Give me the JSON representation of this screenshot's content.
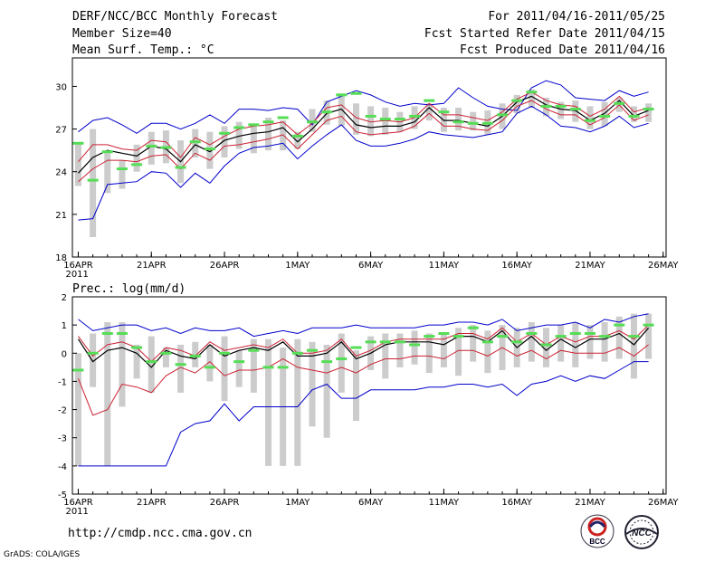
{
  "header": {
    "title": "DERF/NCC/BCC Monthly Forecast",
    "member_size": "Member Size=40",
    "variable": "Mean Surf. Temp.: °C",
    "period": "For 2011/04/16-2011/05/25",
    "start_ref": "Fcst Started Refer Date 2011/04/15",
    "produced": "Fcst Produced Date 2011/04/16"
  },
  "footer": {
    "url": "http://cmdp.ncc.cma.gov.cn",
    "grads": "GrADS: COLA/IGES",
    "logo_bcc": "BCC",
    "logo_ncc": "NCC"
  },
  "colors": {
    "max_min": "#0000cc",
    "spread": "#cc2233",
    "mean": "#000000",
    "obs": "#55dd55",
    "box": "#cccccc"
  },
  "chart_data": [
    {
      "type": "line",
      "name": "temperature",
      "ylabel": "Mean Surf. Temp.: °C",
      "ylim": [
        18,
        32
      ],
      "yticks": [
        18,
        21,
        24,
        27,
        30
      ],
      "xtick_labels": [
        "16APR\n2011",
        "21APR",
        "26APR",
        "1MAY",
        "6MAY",
        "11MAY",
        "16MAY",
        "21MAY",
        "26MAY"
      ],
      "xtick_days": [
        0,
        5,
        10,
        15,
        20,
        25,
        30,
        35,
        40
      ],
      "days": 40,
      "series": [
        {
          "name": "max",
          "values": [
            26.8,
            27.6,
            27.8,
            27.3,
            26.7,
            27.4,
            27.4,
            27.0,
            27.4,
            28.0,
            27.4,
            28.4,
            28.4,
            28.3,
            28.5,
            28.4,
            27.3,
            28.9,
            29.3,
            29.7,
            29.4,
            28.9,
            28.6,
            28.8,
            28.7,
            28.8,
            29.9,
            29.2,
            28.6,
            28.4,
            28.3,
            29.9,
            30.4,
            30.1,
            29.2,
            29.1,
            29.0,
            29.7,
            29.3,
            29.6
          ]
        },
        {
          "name": "upper",
          "values": [
            24.7,
            25.9,
            25.9,
            25.6,
            25.5,
            26.2,
            26.1,
            25.0,
            26.4,
            25.9,
            26.5,
            27.0,
            27.2,
            27.3,
            27.5,
            26.6,
            27.4,
            28.5,
            28.7,
            27.8,
            27.5,
            27.6,
            27.5,
            27.8,
            28.8,
            28.0,
            28.0,
            27.8,
            27.6,
            28.2,
            29.1,
            29.6,
            29.0,
            28.7,
            28.6,
            27.9,
            28.4,
            29.3,
            28.2,
            28.5
          ]
        },
        {
          "name": "mean",
          "values": [
            23.9,
            25.0,
            25.5,
            25.3,
            25.1,
            25.8,
            25.6,
            24.7,
            25.9,
            25.4,
            26.2,
            26.5,
            26.7,
            26.8,
            27.1,
            26.1,
            27.0,
            28.1,
            28.4,
            27.3,
            27.1,
            27.2,
            27.2,
            27.5,
            28.5,
            27.6,
            27.6,
            27.4,
            27.2,
            27.9,
            28.9,
            29.3,
            28.7,
            28.4,
            28.3,
            27.6,
            28.1,
            29.0,
            27.9,
            28.3
          ]
        },
        {
          "name": "lower",
          "values": [
            23.3,
            24.2,
            24.8,
            24.8,
            24.7,
            25.1,
            25.2,
            24.2,
            25.3,
            24.8,
            25.8,
            25.9,
            26.1,
            26.3,
            26.6,
            25.6,
            26.6,
            27.6,
            27.9,
            26.8,
            26.6,
            26.7,
            26.8,
            27.2,
            28.1,
            27.2,
            27.2,
            27.0,
            26.9,
            27.6,
            28.6,
            29.0,
            28.4,
            28.0,
            28.0,
            27.3,
            27.8,
            28.7,
            27.6,
            28.0
          ]
        },
        {
          "name": "min",
          "values": [
            20.6,
            20.7,
            23.1,
            23.2,
            23.3,
            24.0,
            23.9,
            22.9,
            23.9,
            23.2,
            24.4,
            25.3,
            25.7,
            25.8,
            26.0,
            24.9,
            25.8,
            26.6,
            27.3,
            26.2,
            25.8,
            25.8,
            26.0,
            26.3,
            26.8,
            26.6,
            26.5,
            26.4,
            26.6,
            26.8,
            28.1,
            28.6,
            28.0,
            27.2,
            27.1,
            26.8,
            27.2,
            27.9,
            27.1,
            27.4
          ]
        },
        {
          "name": "obs",
          "values": [
            26.0,
            23.4,
            25.4,
            24.2,
            24.5,
            25.8,
            25.7,
            24.3,
            26.1,
            25.6,
            26.7,
            27.1,
            27.3,
            27.5,
            27.8,
            26.5,
            27.5,
            28.2,
            29.4,
            29.5,
            27.9,
            27.7,
            27.7,
            27.9,
            29.0,
            28.2,
            27.5,
            27.4,
            27.4,
            28.0,
            29.0,
            29.6,
            28.6,
            28.6,
            28.4,
            27.6,
            27.9,
            28.8,
            27.9,
            28.4
          ]
        }
      ],
      "boxes": [
        [
          23.0,
          26.0
        ],
        [
          19.4,
          27.0
        ],
        [
          22.5,
          25.5
        ],
        [
          22.8,
          24.8
        ],
        [
          24.0,
          25.9
        ],
        [
          24.5,
          26.8
        ],
        [
          24.6,
          26.9
        ],
        [
          23.2,
          26.2
        ],
        [
          25.0,
          27.0
        ],
        [
          24.2,
          26.8
        ],
        [
          25.0,
          27.2
        ],
        [
          25.6,
          27.5
        ],
        [
          25.3,
          27.4
        ],
        [
          25.5,
          27.8
        ],
        [
          25.5,
          27.6
        ],
        [
          25.6,
          26.8
        ],
        [
          26.8,
          28.4
        ],
        [
          27.3,
          29.0
        ],
        [
          27.2,
          29.5
        ],
        [
          26.6,
          28.8
        ],
        [
          26.5,
          28.6
        ],
        [
          26.6,
          28.5
        ],
        [
          26.8,
          28.2
        ],
        [
          27.0,
          28.6
        ],
        [
          27.6,
          28.8
        ],
        [
          26.8,
          28.5
        ],
        [
          26.9,
          28.5
        ],
        [
          26.9,
          28.2
        ],
        [
          26.6,
          28.3
        ],
        [
          27.0,
          28.8
        ],
        [
          28.1,
          29.4
        ],
        [
          28.5,
          29.8
        ],
        [
          27.9,
          29.2
        ],
        [
          27.7,
          28.9
        ],
        [
          27.5,
          29.0
        ],
        [
          27.0,
          28.6
        ],
        [
          27.2,
          28.9
        ],
        [
          28.2,
          29.2
        ],
        [
          27.5,
          28.6
        ],
        [
          27.5,
          28.8
        ]
      ]
    },
    {
      "type": "line",
      "name": "precipitation",
      "ylabel": "Prec.: log(mm/d)",
      "ylim": [
        -5,
        2
      ],
      "yticks": [
        -5,
        -4,
        -3,
        -2,
        -1,
        0,
        1,
        2
      ],
      "xtick_labels": [
        "16APR\n2011",
        "21APR",
        "26APR",
        "1MAY",
        "6MAY",
        "11MAY",
        "16MAY",
        "21MAY",
        "26MAY"
      ],
      "xtick_days": [
        0,
        5,
        10,
        15,
        20,
        25,
        30,
        35,
        40
      ],
      "days": 40,
      "series": [
        {
          "name": "max",
          "values": [
            1.2,
            0.8,
            0.9,
            1.0,
            1.0,
            0.8,
            0.9,
            0.7,
            0.9,
            0.8,
            0.8,
            0.9,
            0.6,
            0.7,
            0.8,
            0.7,
            0.9,
            0.9,
            0.9,
            1.0,
            0.9,
            0.9,
            0.9,
            0.9,
            1.0,
            1.0,
            1.1,
            1.1,
            1.0,
            1.2,
            0.8,
            0.9,
            1.0,
            1.0,
            1.1,
            0.9,
            1.2,
            1.1,
            1.3,
            1.4
          ]
        },
        {
          "name": "upper",
          "values": [
            0.6,
            -0.1,
            0.3,
            0.4,
            0.2,
            -0.3,
            0.2,
            0.1,
            -0.1,
            0.4,
            0.1,
            0.2,
            0.3,
            0.2,
            0.5,
            0.0,
            0.0,
            0.1,
            0.5,
            -0.1,
            0.1,
            0.4,
            0.5,
            0.5,
            0.5,
            0.5,
            0.7,
            0.7,
            0.5,
            0.9,
            0.4,
            0.7,
            0.3,
            0.6,
            0.4,
            0.6,
            0.6,
            0.8,
            0.5,
            1.0
          ]
        },
        {
          "name": "mean",
          "values": [
            0.5,
            -0.3,
            0.1,
            0.2,
            0.0,
            -0.5,
            0.1,
            -0.1,
            -0.2,
            0.3,
            -0.1,
            0.1,
            0.2,
            0.1,
            0.4,
            -0.1,
            -0.1,
            0.0,
            0.4,
            -0.2,
            0.0,
            0.3,
            0.4,
            0.4,
            0.4,
            0.3,
            0.6,
            0.6,
            0.4,
            0.8,
            0.2,
            0.6,
            0.1,
            0.5,
            0.2,
            0.5,
            0.5,
            0.7,
            0.3,
            0.9
          ]
        },
        {
          "name": "lower",
          "values": [
            -0.9,
            -2.2,
            -2.0,
            -1.1,
            -1.2,
            -1.4,
            -0.8,
            -0.5,
            -0.7,
            -0.3,
            -0.8,
            -0.6,
            -0.6,
            -0.5,
            -0.2,
            -0.5,
            -0.6,
            -0.7,
            -0.5,
            -0.7,
            -0.4,
            -0.2,
            -0.2,
            -0.1,
            -0.1,
            -0.2,
            0.1,
            0.1,
            -0.1,
            0.2,
            -0.1,
            0.1,
            -0.2,
            0.1,
            0.0,
            0.0,
            0.0,
            0.2,
            -0.1,
            0.3
          ]
        },
        {
          "name": "min",
          "values": [
            -4.0,
            -4.0,
            -4.0,
            -4.0,
            -4.0,
            -4.0,
            -4.0,
            -2.8,
            -2.5,
            -2.4,
            -1.8,
            -2.4,
            -1.9,
            -1.9,
            -1.9,
            -1.9,
            -1.3,
            -1.1,
            -1.6,
            -1.6,
            -1.3,
            -1.3,
            -1.3,
            -1.3,
            -1.2,
            -1.2,
            -1.1,
            -1.1,
            -1.2,
            -1.1,
            -1.5,
            -1.1,
            -1.0,
            -0.8,
            -1.0,
            -0.8,
            -0.9,
            -0.6,
            -0.3,
            -0.3
          ]
        },
        {
          "name": "obs",
          "values": [
            -0.6,
            0.0,
            0.7,
            0.7,
            0.2,
            -0.3,
            0.0,
            -0.4,
            -0.1,
            -0.5,
            0.0,
            -0.3,
            0.1,
            -0.5,
            -0.5,
            0.0,
            0.1,
            -0.3,
            -0.2,
            0.2,
            0.4,
            0.4,
            0.4,
            0.3,
            0.6,
            0.7,
            0.6,
            0.9,
            0.4,
            0.6,
            0.4,
            0.7,
            0.3,
            0.6,
            0.7,
            0.7,
            0.6,
            1.0,
            0.6,
            1.0
          ]
        }
      ],
      "boxes": [
        [
          -4.0,
          0.0
        ],
        [
          -1.2,
          0.7
        ],
        [
          -4.0,
          1.1
        ],
        [
          -1.9,
          1.1
        ],
        [
          -0.9,
          0.3
        ],
        [
          -1.4,
          0.6
        ],
        [
          -0.5,
          0.2
        ],
        [
          -1.4,
          0.3
        ],
        [
          -0.5,
          0.4
        ],
        [
          -1.0,
          0.3
        ],
        [
          -1.7,
          0.6
        ],
        [
          -1.2,
          0.1
        ],
        [
          -1.4,
          0.5
        ],
        [
          -4.0,
          0.5
        ],
        [
          -4.0,
          0.2
        ],
        [
          -4.0,
          0.5
        ],
        [
          -2.6,
          0.4
        ],
        [
          -3.0,
          0.3
        ],
        [
          -1.4,
          0.7
        ],
        [
          -2.4,
          0.1
        ],
        [
          -0.6,
          0.6
        ],
        [
          -0.9,
          0.7
        ],
        [
          -0.5,
          0.7
        ],
        [
          -0.4,
          0.8
        ],
        [
          -0.7,
          0.7
        ],
        [
          -0.5,
          0.7
        ],
        [
          -0.8,
          0.9
        ],
        [
          -0.3,
          1.0
        ],
        [
          -0.7,
          0.8
        ],
        [
          -0.6,
          1.0
        ],
        [
          -0.5,
          0.9
        ],
        [
          -0.3,
          1.1
        ],
        [
          -0.5,
          0.9
        ],
        [
          -0.3,
          1.0
        ],
        [
          -0.5,
          1.1
        ],
        [
          -0.2,
          1.0
        ],
        [
          -0.3,
          1.1
        ],
        [
          -0.2,
          1.3
        ],
        [
          -0.9,
          1.4
        ],
        [
          -0.2,
          1.4
        ]
      ]
    }
  ]
}
